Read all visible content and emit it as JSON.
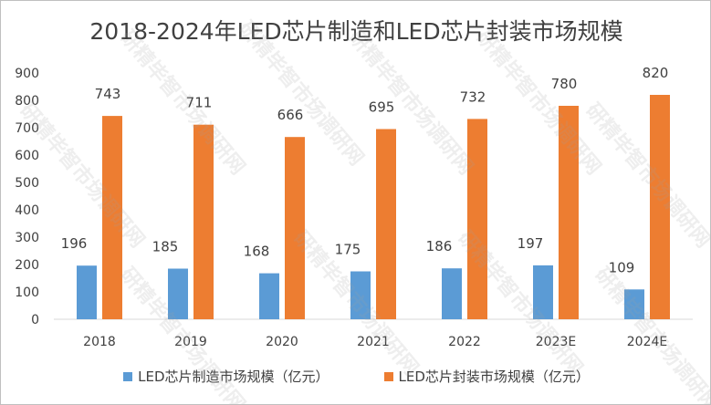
{
  "chart_data": {
    "type": "bar",
    "title": "2018-2024年LED芯片制造和LED芯片封装市场规模",
    "categories": [
      "2018",
      "2019",
      "2020",
      "2021",
      "2022",
      "2023E",
      "2024E"
    ],
    "series": [
      {
        "name": "LED芯片制造市场规模（亿元）",
        "values": [
          196,
          185,
          168,
          175,
          186,
          197,
          109
        ],
        "color": "#5b9bd5"
      },
      {
        "name": "LED芯片封装市场规模（亿元）",
        "values": [
          743,
          711,
          666,
          695,
          732,
          780,
          820
        ],
        "color": "#ed7d31"
      }
    ],
    "data_labels": true,
    "ylim": [
      0,
      900
    ],
    "yticks": [
      0,
      100,
      200,
      300,
      400,
      500,
      600,
      700,
      800,
      900
    ],
    "grid": false,
    "legend": "bottom",
    "xlabel": "",
    "ylabel": ""
  },
  "watermark": "研精毕智市场调研网"
}
